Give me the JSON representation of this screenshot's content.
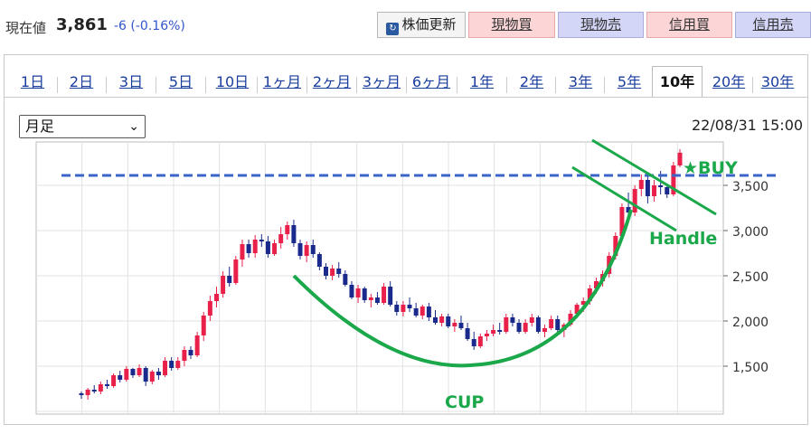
{
  "header": {
    "price_label": "現在値",
    "price_value": "3,861",
    "price_change": "-6 (-0.16%)",
    "refresh_label": "株価更新",
    "buttons": [
      "現物買",
      "現物売",
      "信用買",
      "信用売"
    ]
  },
  "tabs": [
    "1日",
    "2日",
    "3日",
    "5日",
    "10日",
    "1ヶ月",
    "2ヶ月",
    "3ヶ月",
    "6ヶ月",
    "1年",
    "2年",
    "3年",
    "5年",
    "10年",
    "20年",
    "30年"
  ],
  "active_tab": "10年",
  "period_select": {
    "value": "月足"
  },
  "timestamp": "22/08/31 15:00",
  "colors": {
    "up": "#e8204a",
    "down": "#1a2a8c",
    "annotation": "#1aa84a",
    "buy_line": "#3a64c8"
  },
  "annotations": {
    "buy": "★BUY",
    "handle": "Handle",
    "cup": "CUP"
  },
  "chart_data": {
    "type": "candlestick",
    "ylim": [
      1000,
      4000
    ],
    "y_ticks": [
      "1,500",
      "2,000",
      "2,500",
      "3,000",
      "3,500"
    ],
    "buy_level": 3610,
    "candles": [
      [
        1200,
        1220,
        1140,
        1180
      ],
      [
        1180,
        1260,
        1130,
        1240
      ],
      [
        1240,
        1290,
        1200,
        1220
      ],
      [
        1220,
        1330,
        1190,
        1300
      ],
      [
        1300,
        1350,
        1250,
        1280
      ],
      [
        1280,
        1420,
        1260,
        1400
      ],
      [
        1400,
        1450,
        1320,
        1350
      ],
      [
        1350,
        1500,
        1330,
        1470
      ],
      [
        1470,
        1480,
        1370,
        1400
      ],
      [
        1400,
        1520,
        1380,
        1480
      ],
      [
        1480,
        1500,
        1280,
        1330
      ],
      [
        1330,
        1460,
        1300,
        1440
      ],
      [
        1440,
        1480,
        1350,
        1400
      ],
      [
        1400,
        1600,
        1380,
        1560
      ],
      [
        1560,
        1600,
        1450,
        1480
      ],
      [
        1480,
        1600,
        1460,
        1560
      ],
      [
        1560,
        1720,
        1500,
        1680
      ],
      [
        1680,
        1720,
        1580,
        1620
      ],
      [
        1620,
        1880,
        1600,
        1840
      ],
      [
        1840,
        2100,
        1780,
        2060
      ],
      [
        2060,
        2280,
        2000,
        2220
      ],
      [
        2220,
        2380,
        2150,
        2300
      ],
      [
        2300,
        2550,
        2260,
        2500
      ],
      [
        2500,
        2600,
        2380,
        2420
      ],
      [
        2420,
        2720,
        2400,
        2680
      ],
      [
        2680,
        2900,
        2600,
        2850
      ],
      [
        2850,
        2900,
        2700,
        2750
      ],
      [
        2750,
        2950,
        2700,
        2900
      ],
      [
        2900,
        2960,
        2820,
        2880
      ],
      [
        2880,
        2940,
        2700,
        2740
      ],
      [
        2740,
        2900,
        2720,
        2860
      ],
      [
        2860,
        3040,
        2800,
        2960
      ],
      [
        2960,
        3100,
        2900,
        3060
      ],
      [
        3060,
        3120,
        2820,
        2860
      ],
      [
        2860,
        2900,
        2680,
        2720
      ],
      [
        2720,
        2880,
        2650,
        2840
      ],
      [
        2840,
        2900,
        2700,
        2740
      ],
      [
        2740,
        2760,
        2560,
        2600
      ],
      [
        2600,
        2640,
        2460,
        2500
      ],
      [
        2500,
        2620,
        2450,
        2580
      ],
      [
        2580,
        2650,
        2480,
        2520
      ],
      [
        2520,
        2560,
        2380,
        2400
      ],
      [
        2400,
        2440,
        2240,
        2260
      ],
      [
        2260,
        2400,
        2200,
        2360
      ],
      [
        2360,
        2380,
        2200,
        2230
      ],
      [
        2230,
        2300,
        2150,
        2260
      ],
      [
        2260,
        2320,
        2180,
        2200
      ],
      [
        2200,
        2420,
        2180,
        2380
      ],
      [
        2380,
        2440,
        2160,
        2180
      ],
      [
        2180,
        2220,
        2060,
        2100
      ],
      [
        2100,
        2220,
        2050,
        2180
      ],
      [
        2180,
        2260,
        2100,
        2140
      ],
      [
        2140,
        2200,
        2040,
        2060
      ],
      [
        2060,
        2180,
        2020,
        2160
      ],
      [
        2160,
        2200,
        2000,
        2040
      ],
      [
        2040,
        2120,
        1960,
        1980
      ],
      [
        1980,
        2080,
        1940,
        2050
      ],
      [
        2050,
        2080,
        1920,
        1940
      ],
      [
        1940,
        2020,
        1880,
        1980
      ],
      [
        1980,
        2060,
        1900,
        1920
      ],
      [
        1920,
        1980,
        1780,
        1800
      ],
      [
        1800,
        1880,
        1680,
        1720
      ],
      [
        1720,
        1860,
        1700,
        1830
      ],
      [
        1830,
        1900,
        1780,
        1860
      ],
      [
        1860,
        1960,
        1830,
        1900
      ],
      [
        1900,
        1980,
        1850,
        1880
      ],
      [
        1880,
        2080,
        1860,
        2040
      ],
      [
        2040,
        2080,
        1940,
        1980
      ],
      [
        1980,
        2020,
        1860,
        1880
      ],
      [
        1880,
        2020,
        1860,
        1980
      ],
      [
        1980,
        2080,
        1940,
        2040
      ],
      [
        2040,
        2060,
        1860,
        1880
      ],
      [
        1880,
        1960,
        1820,
        1920
      ],
      [
        1920,
        2060,
        1900,
        2020
      ],
      [
        2020,
        2060,
        1880,
        1900
      ],
      [
        1900,
        1980,
        1820,
        1960
      ],
      [
        1960,
        2120,
        1940,
        2080
      ],
      [
        2080,
        2200,
        2040,
        2180
      ],
      [
        2180,
        2260,
        2100,
        2220
      ],
      [
        2220,
        2400,
        2180,
        2360
      ],
      [
        2360,
        2480,
        2300,
        2440
      ],
      [
        2440,
        2560,
        2380,
        2520
      ],
      [
        2520,
        2760,
        2480,
        2720
      ],
      [
        2720,
        2980,
        2680,
        2940
      ],
      [
        2940,
        3300,
        2900,
        3260
      ],
      [
        3260,
        3420,
        3120,
        3200
      ],
      [
        3200,
        3500,
        3160,
        3460
      ],
      [
        3460,
        3620,
        3380,
        3560
      ],
      [
        3560,
        3640,
        3300,
        3380
      ],
      [
        3380,
        3560,
        3320,
        3500
      ],
      [
        3500,
        3660,
        3400,
        3480
      ],
      [
        3480,
        3520,
        3360,
        3400
      ],
      [
        3400,
        3760,
        3380,
        3720
      ],
      [
        3720,
        3900,
        3700,
        3861
      ]
    ]
  }
}
